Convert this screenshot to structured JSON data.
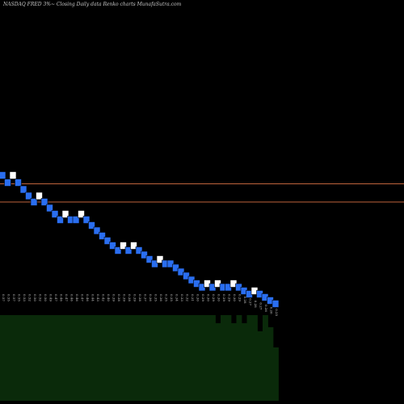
{
  "title": "NASDAQ FRED 3%~  Closing Daily data  Renko  charts MunafaSutra.com",
  "colors": {
    "background": "#000000",
    "up_brick": "#ffffff",
    "down_brick": "#2a6ef0",
    "brick_border": "#000000",
    "reference_line": "#c0643c",
    "volume_area": "#0a2a0a",
    "label_text": "#cfcfcf"
  },
  "chart_data": {
    "type": "renko",
    "title": "NASDAQ FRED 3%~  Closing Daily data  Renko  charts MunafaSutra.com",
    "box_size_percent": 3,
    "price_range": [
      0,
      1
    ],
    "reference_lines": [
      0.5,
      0.545
    ],
    "bricks": [
      {
        "dir": "down",
        "close": 0.566
      },
      {
        "dir": "down",
        "close": 0.548
      },
      {
        "dir": "up",
        "close": 0.566
      },
      {
        "dir": "down",
        "close": 0.548
      },
      {
        "dir": "down",
        "close": 0.531
      },
      {
        "dir": "down",
        "close": 0.515
      },
      {
        "dir": "down",
        "close": 0.5
      },
      {
        "dir": "up",
        "close": 0.515
      },
      {
        "dir": "down",
        "close": 0.5
      },
      {
        "dir": "down",
        "close": 0.485
      },
      {
        "dir": "down",
        "close": 0.47
      },
      {
        "dir": "down",
        "close": 0.456
      },
      {
        "dir": "up",
        "close": 0.47
      },
      {
        "dir": "down",
        "close": 0.456
      },
      {
        "dir": "down",
        "close": 0.456
      },
      {
        "dir": "up",
        "close": 0.47
      },
      {
        "dir": "down",
        "close": 0.456
      },
      {
        "dir": "down",
        "close": 0.442
      },
      {
        "dir": "down",
        "close": 0.429
      },
      {
        "dir": "down",
        "close": 0.416
      },
      {
        "dir": "down",
        "close": 0.404
      },
      {
        "dir": "down",
        "close": 0.392
      },
      {
        "dir": "down",
        "close": 0.38
      },
      {
        "dir": "up",
        "close": 0.392
      },
      {
        "dir": "down",
        "close": 0.38
      },
      {
        "dir": "up",
        "close": 0.392
      },
      {
        "dir": "down",
        "close": 0.38
      },
      {
        "dir": "down",
        "close": 0.369
      },
      {
        "dir": "down",
        "close": 0.358
      },
      {
        "dir": "down",
        "close": 0.347
      },
      {
        "dir": "up",
        "close": 0.358
      },
      {
        "dir": "down",
        "close": 0.347
      },
      {
        "dir": "down",
        "close": 0.347
      },
      {
        "dir": "down",
        "close": 0.337
      },
      {
        "dir": "down",
        "close": 0.327
      },
      {
        "dir": "down",
        "close": 0.317
      },
      {
        "dir": "down",
        "close": 0.307
      },
      {
        "dir": "down",
        "close": 0.298
      },
      {
        "dir": "down",
        "close": 0.289
      },
      {
        "dir": "up",
        "close": 0.298
      },
      {
        "dir": "down",
        "close": 0.289
      },
      {
        "dir": "up",
        "close": 0.298
      },
      {
        "dir": "down",
        "close": 0.289
      },
      {
        "dir": "down",
        "close": 0.289
      },
      {
        "dir": "up",
        "close": 0.298
      },
      {
        "dir": "down",
        "close": 0.289
      },
      {
        "dir": "down",
        "close": 0.28
      },
      {
        "dir": "down",
        "close": 0.272
      },
      {
        "dir": "up",
        "close": 0.28
      },
      {
        "dir": "down",
        "close": 0.272
      },
      {
        "dir": "down",
        "close": 0.264
      },
      {
        "dir": "down",
        "close": 0.256
      },
      {
        "dir": "down",
        "close": 0.248
      }
    ],
    "volume_bars": [
      0.22,
      0.22,
      0.22,
      0.22,
      0.22,
      0.22,
      0.22,
      0.22,
      0.22,
      0.22,
      0.22,
      0.22,
      0.22,
      0.22,
      0.22,
      0.22,
      0.22,
      0.22,
      0.22,
      0.22,
      0.22,
      0.22,
      0.22,
      0.22,
      0.22,
      0.22,
      0.22,
      0.22,
      0.22,
      0.22,
      0.22,
      0.22,
      0.22,
      0.22,
      0.22,
      0.22,
      0.22,
      0.22,
      0.22,
      0.22,
      0.22,
      0.2,
      0.22,
      0.22,
      0.2,
      0.22,
      0.2,
      0.22,
      0.22,
      0.18,
      0.22,
      0.19,
      0.14
    ],
    "tick_labels": [
      "0.57",
      "0.55",
      "0.57",
      "0.55",
      "0.53",
      "0.52",
      "0.50",
      "0.52",
      "0.50",
      "0.49",
      "0.47",
      "0.46",
      "0.47",
      "0.46",
      "0.46",
      "0.47",
      "0.46",
      "0.44",
      "0.43",
      "0.42",
      "0.40",
      "0.39",
      "0.38",
      "0.39",
      "0.38",
      "0.39",
      "0.38",
      "0.37",
      "0.36",
      "0.35",
      "0.36",
      "0.35",
      "0.35",
      "0.34",
      "0.33",
      "0.32",
      "0.31",
      "0.30",
      "0.29",
      "0.30",
      "0.29",
      "0.30",
      "0.29",
      "0.29",
      "0.30",
      "0.29",
      "0.28",
      "0.27",
      "0.28",
      "0.27",
      "0.26",
      "0.26",
      "0.25"
    ]
  }
}
